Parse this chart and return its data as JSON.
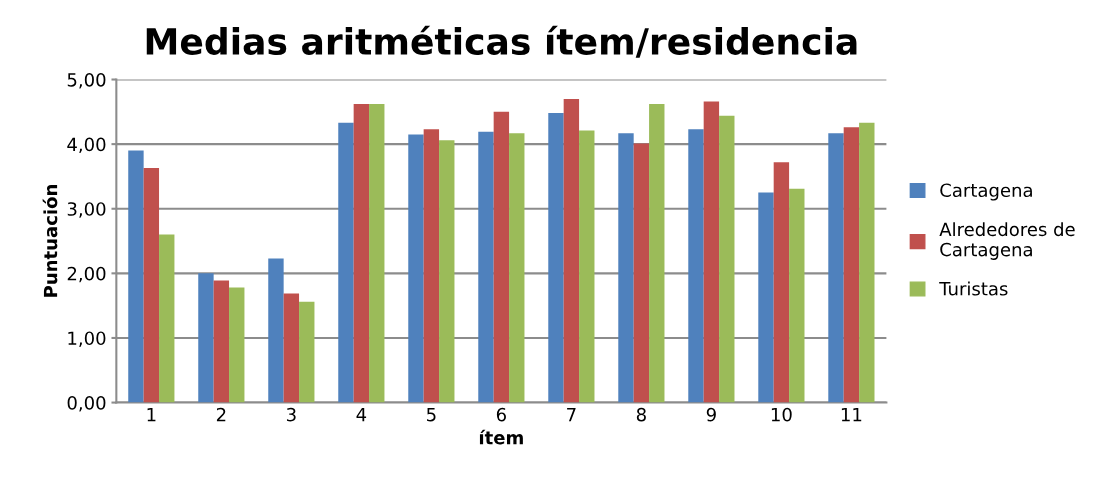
{
  "chart_data": {
    "type": "bar",
    "title": "Medias aritméticas ítem/residencia",
    "xlabel": "ítem",
    "ylabel": "Puntuación",
    "categories": [
      "1",
      "2",
      "3",
      "4",
      "5",
      "6",
      "7",
      "8",
      "9",
      "10",
      "11"
    ],
    "series": [
      {
        "name": "Cartagena",
        "color": "#4f81bd",
        "values": [
          3.9,
          2.0,
          2.23,
          4.33,
          4.15,
          4.19,
          4.48,
          4.17,
          4.23,
          3.25,
          4.17
        ]
      },
      {
        "name": "Alrededores de\nCartagena",
        "color": "#c0504d",
        "values": [
          3.63,
          1.89,
          1.69,
          4.62,
          4.23,
          4.5,
          4.7,
          4.01,
          4.66,
          3.72,
          4.26
        ]
      },
      {
        "name": "Turistas",
        "color": "#9bbb59",
        "values": [
          2.6,
          1.78,
          1.56,
          4.62,
          4.06,
          4.17,
          4.21,
          4.62,
          4.44,
          3.31,
          4.33
        ]
      }
    ],
    "ylim": [
      0,
      5
    ],
    "yticks": [
      {
        "value": 0,
        "label": "0,00"
      },
      {
        "value": 1,
        "label": "1,00"
      },
      {
        "value": 2,
        "label": "2,00"
      },
      {
        "value": 3,
        "label": "3,00"
      },
      {
        "value": 4,
        "label": "4,00"
      },
      {
        "value": 5,
        "label": "5,00"
      }
    ],
    "grid": "y",
    "legend": "right"
  }
}
